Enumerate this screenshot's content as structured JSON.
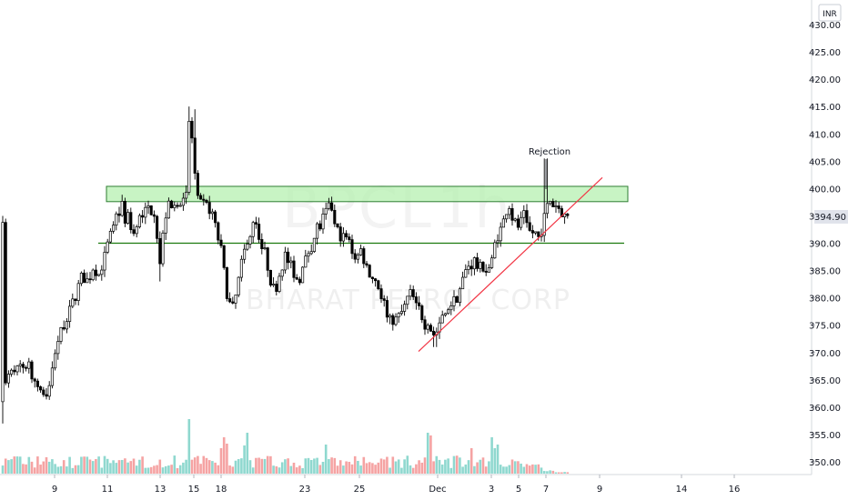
{
  "chart_data": {
    "type": "candlestick",
    "symbol": "BPCL",
    "interval": "1h",
    "company": "BHARAT PETROL CORP",
    "currency": "INR",
    "last_price": "394.90",
    "y_ticks": [
      "430.00",
      "425.00",
      "420.00",
      "415.00",
      "410.00",
      "405.00",
      "400.00",
      "395.00",
      "390.00",
      "385.00",
      "380.00",
      "375.00",
      "370.00",
      "365.00",
      "360.00",
      "355.00",
      "350.00"
    ],
    "x_ticks": [
      "9",
      "11",
      "13",
      "15",
      "18",
      "23",
      "25",
      "Dec",
      "3",
      "5",
      "7",
      "9",
      "14",
      "16"
    ],
    "ylim": [
      348.5,
      431.5
    ],
    "resistance_zone": [
      397.6,
      400.4
    ],
    "support_level": 390.0,
    "trendline": {
      "start": [
        460,
        370.2
      ],
      "end": [
        662,
        402.0
      ]
    },
    "annotations": [
      {
        "text": "Rejection",
        "price": 405.5
      }
    ],
    "grid": false,
    "colors": {
      "up": "#26a69a",
      "down": "#ef5350",
      "candle": "#000000",
      "zone_fill": "#b6f0b0",
      "zone_border": "#2e7d32",
      "support": "#1b7a0f",
      "trendline": "#f23645",
      "vol_up": "#8fd8cf",
      "vol_down": "#f5a3a3"
    },
    "candles": [
      [
        0,
        0,
        0,
        0
      ]
    ],
    "volume": [
      [
        0,
        0
      ]
    ]
  }
}
